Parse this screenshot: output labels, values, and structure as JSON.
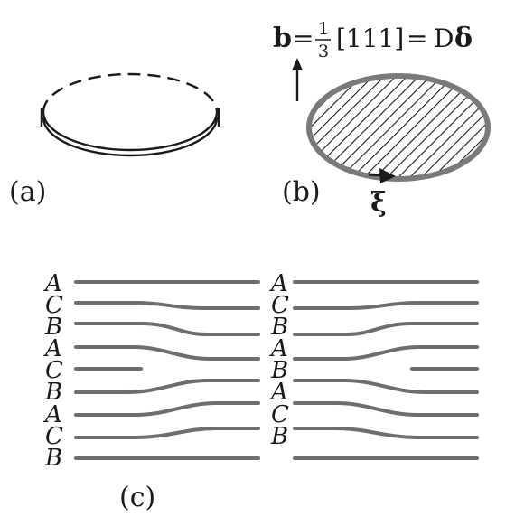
{
  "panels": {
    "a": {
      "label": "(a)"
    },
    "b": {
      "label": "(b)",
      "formula": {
        "vector": "b",
        "equals1": "=",
        "frac_num": "1",
        "frac_den": "3",
        "bracket": "[111]",
        "equals2": "=",
        "rhs_D": "D",
        "rhs_delta": "δ"
      },
      "xi": "ξ",
      "hatch_color": "#1a1a1a",
      "loop_color": "#7a7a7a"
    },
    "c": {
      "label": "(c)",
      "left_layers": [
        "A",
        "C",
        "B",
        "A",
        "C",
        "B",
        "A",
        "C",
        "B"
      ],
      "right_layers": [
        "A",
        "C",
        "B",
        "A",
        "B",
        "A",
        "C",
        "B"
      ],
      "line_color": "#6e6e6e"
    }
  }
}
